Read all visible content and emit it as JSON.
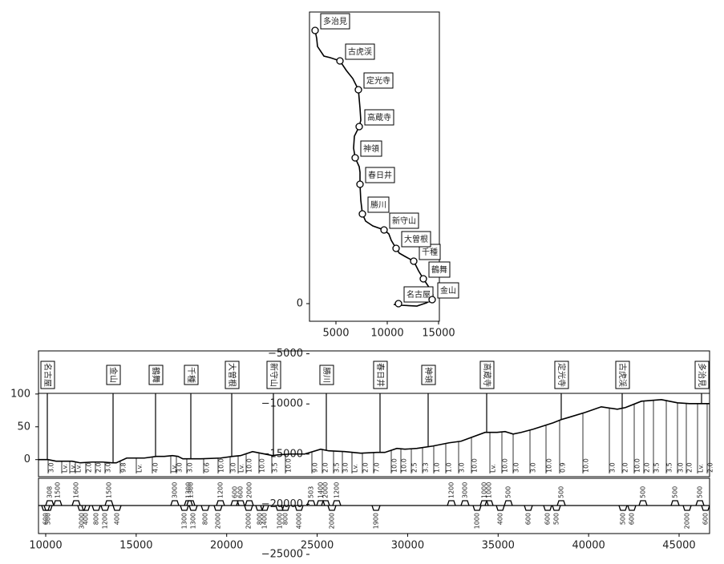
{
  "chart_data": [
    {
      "type": "line",
      "xlim": [
        2422,
        15078
      ],
      "ylim": [
        -1757,
        29073
      ],
      "xticks": [
        5000,
        10000,
        15000
      ],
      "yticks": [
        0,
        {
          "value": -5000,
          "label": "−5000"
        },
        {
          "value": -10000,
          "label": "−10000"
        },
        {
          "value": -15000,
          "label": "−15000"
        },
        {
          "value": -20000,
          "label": "−20000"
        },
        {
          "value": -25000,
          "label": "−25000"
        }
      ],
      "x": [
        10625,
        11328,
        12891,
        13828,
        14375,
        14453,
        14141,
        13516,
        13047,
        12578,
        11719,
        11172,
        10860,
        10391,
        10156,
        9688,
        8594,
        7891,
        7578,
        7422,
        7344,
        7344,
        7266,
        6875,
        6719,
        6797,
        7266,
        7422,
        7344,
        7188,
        6641,
        6016,
        5391,
        4453,
        3828,
        3203,
        3125,
        2969
      ],
      "y": [
        -80,
        -160,
        -240,
        80,
        399,
        879,
        1518,
        2476,
        3275,
        4233,
        4712,
        5032,
        5511,
        6310,
        6949,
        7348,
        7747,
        8227,
        8946,
        10303,
        11901,
        13099,
        13658,
        14536,
        15495,
        16693,
        17651,
        18290,
        19488,
        21325,
        22443,
        23242,
        24201,
        24520,
        24680,
        25638,
        26437,
        27236
      ],
      "stations": [
        {
          "name": "名古屋",
          "x": 11094,
          "y": 0
        },
        {
          "name": "金山",
          "x": 14375,
          "y": 399
        },
        {
          "name": "鶴舞",
          "x": 13516,
          "y": 2476
        },
        {
          "name": "千種",
          "x": 12578,
          "y": 4233
        },
        {
          "name": "大曽根",
          "x": 10860,
          "y": 5511
        },
        {
          "name": "新守山",
          "x": 9688,
          "y": 7348
        },
        {
          "name": "勝川",
          "x": 7578,
          "y": 8946
        },
        {
          "name": "春日井",
          "x": 7344,
          "y": 11901
        },
        {
          "name": "神領",
          "x": 6875,
          "y": 14537
        },
        {
          "name": "高蔵寺",
          "x": 7266,
          "y": 17652
        },
        {
          "name": "定光寺",
          "x": 7188,
          "y": 21326
        },
        {
          "name": "古虎渓",
          "x": 5391,
          "y": 24201
        },
        {
          "name": "多治見",
          "x": 2969,
          "y": 27236
        }
      ]
    },
    {
      "type": "profile",
      "xlim": [
        9601,
        46684
      ],
      "ylim": [
        -26,
        101
      ],
      "yticks": [
        0,
        50,
        100
      ],
      "x": [
        9601,
        10133,
        10576,
        11462,
        11905,
        12569,
        13145,
        13677,
        13899,
        14475,
        15449,
        16114,
        16557,
        16999,
        17310,
        17576,
        18551,
        19658,
        20323,
        20766,
        21430,
        21873,
        22538,
        22848,
        23513,
        24310,
        25196,
        25639,
        26525,
        27411,
        28297,
        28740,
        29405,
        29848,
        30512,
        31398,
        32284,
        32949,
        34278,
        34942,
        35385,
        35828,
        36271,
        36935,
        38043,
        38486,
        38929,
        39815,
        40701,
        41587,
        42030,
        42916,
        44023,
        44909,
        45574,
        46684
      ],
      "y": [
        0,
        0,
        -2.4,
        -2.4,
        -4.9,
        -3.7,
        -3.7,
        -4.9,
        -4.9,
        2.4,
        2.4,
        4.9,
        4.9,
        6.1,
        4.9,
        1.2,
        1.2,
        2.4,
        4.9,
        6.1,
        12.2,
        9.8,
        6.1,
        7.3,
        8.5,
        8.5,
        15.9,
        13.4,
        12.2,
        9.8,
        11,
        11,
        17.1,
        15.9,
        17.1,
        20.7,
        25.6,
        28,
        41.5,
        41.5,
        42.7,
        39,
        41.5,
        46.3,
        56.1,
        61,
        64.6,
        72,
        80.5,
        76.8,
        79.3,
        89,
        91.5,
        86.6,
        85.4,
        85.4
      ],
      "stations": [
        {
          "name": "名古屋",
          "distance": 10089
        },
        {
          "name": "金山",
          "distance": 13722
        },
        {
          "name": "鶴舞",
          "distance": 16070
        },
        {
          "name": "千種",
          "distance": 18019
        },
        {
          "name": "大曽根",
          "distance": 20279
        },
        {
          "name": "新守山",
          "distance": 22582
        },
        {
          "name": "勝川",
          "distance": 25506
        },
        {
          "name": "春日井",
          "distance": 28474
        },
        {
          "name": "神領",
          "distance": 31133
        },
        {
          "name": "高蔵寺",
          "distance": 34367
        },
        {
          "name": "定光寺",
          "distance": 38487
        },
        {
          "name": "古虎渓",
          "distance": 41855
        },
        {
          "name": "多治見",
          "distance": 46241
        }
      ],
      "gradients": [
        {
          "x": 10133,
          "label": "3.0"
        },
        {
          "x": 10886,
          "label": "Lv."
        },
        {
          "x": 11329,
          "label": "Lv."
        },
        {
          "x": 11639,
          "label": "Lv."
        },
        {
          "x": 12215,
          "label": "2.0"
        },
        {
          "x": 12747,
          "label": "2.0"
        },
        {
          "x": 13278,
          "label": "3.0"
        },
        {
          "x": 14120,
          "label": "9.8"
        },
        {
          "x": 15006,
          "label": "Lv."
        },
        {
          "x": 15892,
          "label": "4.0"
        },
        {
          "x": 16911,
          "label": "Lv."
        },
        {
          "x": 17221,
          "label": "3.0"
        },
        {
          "x": 17797,
          "label": "3.0"
        },
        {
          "x": 18728,
          "label": "0.6"
        },
        {
          "x": 19525,
          "label": "10.0"
        },
        {
          "x": 20190,
          "label": "3.0"
        },
        {
          "x": 20633,
          "label": "Lv."
        },
        {
          "x": 21076,
          "label": "10.0"
        },
        {
          "x": 21785,
          "label": "10.0"
        },
        {
          "x": 22494,
          "label": "3.5"
        },
        {
          "x": 23247,
          "label": "10.0"
        },
        {
          "x": 24709,
          "label": "9.0"
        },
        {
          "x": 25285,
          "label": "2.0"
        },
        {
          "x": 25905,
          "label": "3.5"
        },
        {
          "x": 26393,
          "label": "3.0"
        },
        {
          "x": 26924,
          "label": "Lv."
        },
        {
          "x": 27500,
          "label": "2.0"
        },
        {
          "x": 28120,
          "label": "7.0"
        },
        {
          "x": 29095,
          "label": "10.0"
        },
        {
          "x": 29627,
          "label": "10.0"
        },
        {
          "x": 30203,
          "label": "2.5"
        },
        {
          "x": 30823,
          "label": "3.3"
        },
        {
          "x": 31443,
          "label": "1.0"
        },
        {
          "x": 32108,
          "label": "1.0"
        },
        {
          "x": 32817,
          "label": "3.0"
        },
        {
          "x": 33526,
          "label": "10.0"
        },
        {
          "x": 34545,
          "label": "Lv."
        },
        {
          "x": 35209,
          "label": "10.0"
        },
        {
          "x": 35830,
          "label": "3.0"
        },
        {
          "x": 36760,
          "label": "3.0"
        },
        {
          "x": 37646,
          "label": "10.0"
        },
        {
          "x": 38399,
          "label": "0.9"
        },
        {
          "x": 39684,
          "label": "10.0"
        },
        {
          "x": 41146,
          "label": "3.0"
        },
        {
          "x": 41855,
          "label": "2.0"
        },
        {
          "x": 42520,
          "label": "10.0"
        },
        {
          "x": 43051,
          "label": "2.0"
        },
        {
          "x": 43583,
          "label": "3.5"
        },
        {
          "x": 44292,
          "label": "3.5"
        },
        {
          "x": 44912,
          "label": "3.0"
        },
        {
          "x": 45399,
          "label": "2.0"
        },
        {
          "x": 46020,
          "label": "Lv."
        },
        {
          "x": 46551,
          "label": "2.0"
        }
      ]
    },
    {
      "type": "curve",
      "xlim": [
        9601,
        46684
      ],
      "xticks": [
        10000,
        15000,
        20000,
        25000,
        30000,
        35000,
        40000,
        45000
      ],
      "curves": [
        {
          "x": 10000,
          "side": "down",
          "label": "600"
        },
        {
          "x": 10133,
          "side": "down",
          "label": "500"
        },
        {
          "x": 10221,
          "side": "up",
          "label": "308"
        },
        {
          "x": 10664,
          "side": "up",
          "label": "1500"
        },
        {
          "x": 11683,
          "side": "up",
          "label": "1600"
        },
        {
          "x": 11993,
          "side": "down",
          "label": "3000"
        },
        {
          "x": 12215,
          "side": "down",
          "label": "400"
        },
        {
          "x": 12791,
          "side": "down",
          "label": "800"
        },
        {
          "x": 13278,
          "side": "down",
          "label": "1200"
        },
        {
          "x": 13500,
          "side": "up",
          "label": "1500"
        },
        {
          "x": 13943,
          "side": "down",
          "label": "400"
        },
        {
          "x": 17133,
          "side": "up",
          "label": "3000"
        },
        {
          "x": 17664,
          "side": "down",
          "label": "1300"
        },
        {
          "x": 17886,
          "side": "up",
          "label": "1300"
        },
        {
          "x": 18019,
          "side": "up",
          "label": "1300"
        },
        {
          "x": 18152,
          "side": "down",
          "label": "1300"
        },
        {
          "x": 18816,
          "side": "down",
          "label": "800"
        },
        {
          "x": 19525,
          "side": "down",
          "label": "2000"
        },
        {
          "x": 19658,
          "side": "up",
          "label": "1200"
        },
        {
          "x": 20456,
          "side": "up",
          "label": "600"
        },
        {
          "x": 20766,
          "side": "up",
          "label": "600"
        },
        {
          "x": 21209,
          "side": "down",
          "label": "2000"
        },
        {
          "x": 21253,
          "side": "up",
          "label": "2000"
        },
        {
          "x": 21829,
          "side": "down",
          "label": "800"
        },
        {
          "x": 22095,
          "side": "down",
          "label": "1400"
        },
        {
          "x": 22937,
          "side": "down",
          "label": "1000"
        },
        {
          "x": 23247,
          "side": "down",
          "label": "800"
        },
        {
          "x": 24000,
          "side": "down",
          "label": "4000"
        },
        {
          "x": 24665,
          "side": "up",
          "label": "503"
        },
        {
          "x": 25196,
          "side": "up",
          "label": "1400"
        },
        {
          "x": 25462,
          "side": "up",
          "label": "2000"
        },
        {
          "x": 25817,
          "side": "down",
          "label": "2000"
        },
        {
          "x": 26082,
          "side": "up",
          "label": "1200"
        },
        {
          "x": 28253,
          "side": "down",
          "label": "1900"
        },
        {
          "x": 32418,
          "side": "up",
          "label": "1200"
        },
        {
          "x": 33171,
          "side": "up",
          "label": "3000"
        },
        {
          "x": 33836,
          "side": "down",
          "label": "1000"
        },
        {
          "x": 34235,
          "side": "up",
          "label": "1000"
        },
        {
          "x": 34500,
          "side": "up",
          "label": "1000"
        },
        {
          "x": 35121,
          "side": "down",
          "label": "400"
        },
        {
          "x": 35564,
          "side": "up",
          "label": "500"
        },
        {
          "x": 36671,
          "side": "down",
          "label": "600"
        },
        {
          "x": 37735,
          "side": "down",
          "label": "600"
        },
        {
          "x": 38222,
          "side": "down",
          "label": "500"
        },
        {
          "x": 38488,
          "side": "up",
          "label": "500"
        },
        {
          "x": 41899,
          "side": "down",
          "label": "500"
        },
        {
          "x": 42387,
          "side": "down",
          "label": "600"
        },
        {
          "x": 43007,
          "side": "up",
          "label": "500"
        },
        {
          "x": 44779,
          "side": "up",
          "label": "500"
        },
        {
          "x": 45444,
          "side": "down",
          "label": "2000"
        },
        {
          "x": 46153,
          "side": "up",
          "label": "500"
        },
        {
          "x": 46463,
          "side": "down",
          "label": "600"
        }
      ]
    }
  ]
}
